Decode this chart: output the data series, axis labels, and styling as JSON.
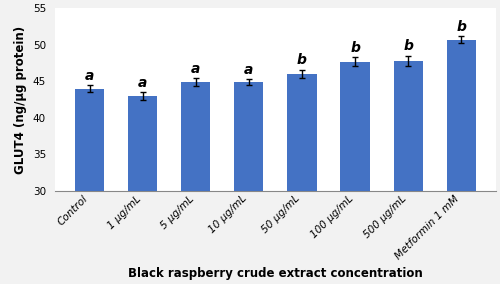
{
  "categories": [
    "Control",
    "1 μg/mL",
    "5 μg/mL",
    "10 μg/mL",
    "50 μg/mL",
    "100 μg/mL",
    "500 μg/mL",
    "Metformin 1 mM"
  ],
  "values": [
    44.0,
    43.0,
    44.9,
    44.9,
    46.0,
    47.7,
    47.8,
    50.7
  ],
  "errors": [
    0.5,
    0.5,
    0.5,
    0.4,
    0.6,
    0.6,
    0.7,
    0.5
  ],
  "labels": [
    "a",
    "a",
    "a",
    "a",
    "b",
    "b",
    "b",
    "b"
  ],
  "bar_color": "#4472C4",
  "ylabel": "GLUT4 (ng/μg protein)",
  "xlabel": "Black raspberry crude extract concentration",
  "ylim": [
    30,
    55
  ],
  "yticks": [
    30,
    35,
    40,
    45,
    50,
    55
  ],
  "tick_fontsize": 7.5,
  "xlabel_fontsize": 8.5,
  "ylabel_fontsize": 8.5,
  "sig_label_fontsize": 10,
  "bar_width": 0.55,
  "fig_facecolor": "#f2f2f2",
  "axes_facecolor": "#ffffff"
}
